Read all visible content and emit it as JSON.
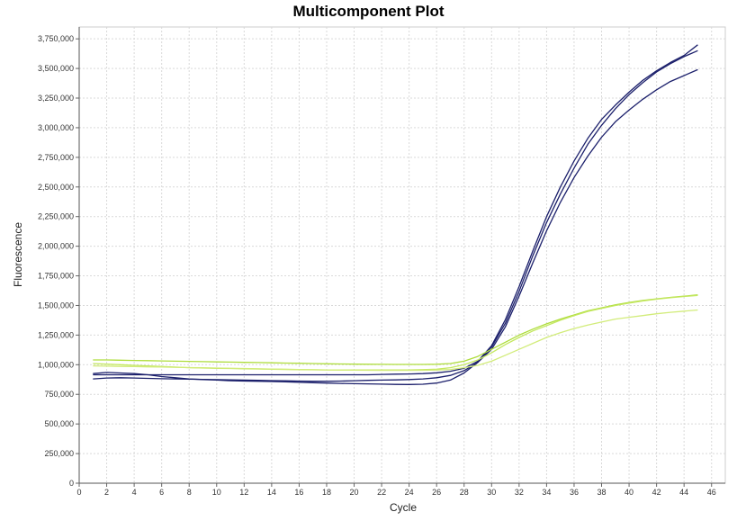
{
  "chart_data": {
    "type": "line",
    "title": "Multicomponent Plot",
    "xlabel": "Cycle",
    "ylabel": "Fluorescence",
    "xlim": [
      0,
      47
    ],
    "ylim": [
      0,
      3850000
    ],
    "x_ticks": [
      0,
      2,
      4,
      6,
      8,
      10,
      12,
      14,
      16,
      18,
      20,
      22,
      24,
      26,
      28,
      30,
      32,
      34,
      36,
      38,
      40,
      42,
      44,
      46
    ],
    "x_tick_labels": [
      "0",
      "2",
      "4",
      "6",
      "8",
      "10",
      "12",
      "14",
      "16",
      "18",
      "20",
      "22",
      "24",
      "26",
      "28",
      "30",
      "32",
      "34",
      "36",
      "38",
      "40",
      "42",
      "44",
      "46"
    ],
    "y_ticks": [
      0,
      250000,
      500000,
      750000,
      1000000,
      1250000,
      1500000,
      1750000,
      2000000,
      2250000,
      2500000,
      2750000,
      3000000,
      3250000,
      3500000,
      3750000
    ],
    "y_tick_labels": [
      "0",
      "250,000",
      "500,000",
      "750,000",
      "1,000,000",
      "1,250,000",
      "1,500,000",
      "1,750,000",
      "2,000,000",
      "2,250,000",
      "2,500,000",
      "2,750,000",
      "3,000,000",
      "3,250,000",
      "3,500,000",
      "3,750,000"
    ],
    "grid": true,
    "x": [
      1,
      2,
      3,
      4,
      5,
      6,
      7,
      8,
      9,
      10,
      11,
      12,
      13,
      14,
      15,
      16,
      17,
      18,
      19,
      20,
      21,
      22,
      23,
      24,
      25,
      26,
      27,
      28,
      29,
      30,
      31,
      32,
      33,
      34,
      35,
      36,
      37,
      38,
      39,
      40,
      41,
      42,
      43,
      44,
      45
    ],
    "series": [
      {
        "color": "#1b1f6b",
        "values": [
          925000,
          935000,
          930000,
          925000,
          915000,
          900000,
          890000,
          880000,
          875000,
          870000,
          865000,
          862000,
          860000,
          858000,
          855000,
          852000,
          848000,
          845000,
          842000,
          840000,
          838000,
          836000,
          834000,
          833000,
          835000,
          845000,
          870000,
          930000,
          1020000,
          1150000,
          1350000,
          1620000,
          1920000,
          2200000,
          2440000,
          2660000,
          2860000,
          3020000,
          3160000,
          3280000,
          3380000,
          3470000,
          3540000,
          3600000,
          3650000
        ]
      },
      {
        "color": "#1b1f6b",
        "values": [
          880000,
          888000,
          890000,
          888000,
          885000,
          882000,
          880000,
          878000,
          876000,
          874000,
          872000,
          870000,
          868000,
          866000,
          864000,
          862000,
          860000,
          860000,
          862000,
          865000,
          868000,
          870000,
          872000,
          875000,
          880000,
          890000,
          910000,
          950000,
          1020000,
          1130000,
          1320000,
          1580000,
          1860000,
          2130000,
          2370000,
          2580000,
          2760000,
          2920000,
          3050000,
          3150000,
          3240000,
          3320000,
          3390000,
          3440000,
          3490000
        ]
      },
      {
        "color": "#1b1f6b",
        "values": [
          915000,
          915000,
          915000,
          915000,
          915000,
          915000,
          915000,
          915000,
          915000,
          915000,
          915000,
          915000,
          915000,
          915000,
          915000,
          915000,
          915000,
          915000,
          915000,
          915000,
          915000,
          918000,
          920000,
          922000,
          925000,
          932000,
          945000,
          970000,
          1030000,
          1160000,
          1380000,
          1660000,
          1960000,
          2250000,
          2500000,
          2720000,
          2910000,
          3070000,
          3190000,
          3300000,
          3400000,
          3480000,
          3550000,
          3610000,
          3700000
        ]
      },
      {
        "color": "#aedd3c",
        "values": [
          1040000,
          1040000,
          1038000,
          1036000,
          1034000,
          1032000,
          1030000,
          1028000,
          1026000,
          1024000,
          1022000,
          1020000,
          1018000,
          1016000,
          1014000,
          1012000,
          1010000,
          1008000,
          1006000,
          1005000,
          1004000,
          1003000,
          1002000,
          1002000,
          1002000,
          1004000,
          1010000,
          1030000,
          1070000,
          1130000,
          1190000,
          1250000,
          1300000,
          1345000,
          1385000,
          1420000,
          1455000,
          1480000,
          1505000,
          1525000,
          1542000,
          1556000,
          1568000,
          1578000,
          1590000
        ]
      },
      {
        "color": "#c4e860",
        "values": [
          1010000,
          1005000,
          1000000,
          995000,
          990000,
          985000,
          980000,
          975000,
          972000,
          970000,
          968000,
          966000,
          964000,
          962000,
          960000,
          958000,
          957000,
          956000,
          955000,
          955000,
          955000,
          955000,
          955000,
          956000,
          958000,
          962000,
          975000,
          1000000,
          1040000,
          1100000,
          1170000,
          1230000,
          1285000,
          1330000,
          1375000,
          1415000,
          1450000,
          1475000,
          1500000,
          1520000,
          1538000,
          1553000,
          1566000,
          1576000,
          1585000
        ]
      },
      {
        "color": "#d2ec7a",
        "values": [
          990000,
          988000,
          986000,
          984000,
          982000,
          980000,
          978000,
          976000,
          974000,
          972000,
          970000,
          968000,
          966000,
          964000,
          962000,
          960000,
          958000,
          956000,
          955000,
          954000,
          953000,
          952000,
          952000,
          952000,
          953000,
          955000,
          960000,
          975000,
          995000,
          1030000,
          1080000,
          1130000,
          1180000,
          1230000,
          1270000,
          1305000,
          1335000,
          1360000,
          1385000,
          1400000,
          1415000,
          1430000,
          1442000,
          1452000,
          1462000
        ]
      }
    ]
  }
}
